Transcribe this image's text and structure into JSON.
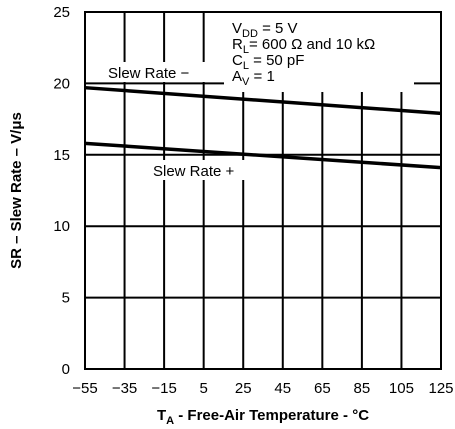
{
  "chart_data": {
    "type": "line",
    "title": "",
    "xlabel": {
      "main": "T",
      "sub": "A",
      "rest": " - Free-Air Temperature - °C"
    },
    "ylabel": "SR – Slew Rate – V/μs",
    "xlim": [
      -55,
      125
    ],
    "ylim": [
      0,
      25
    ],
    "xticks": [
      -55,
      -35,
      -15,
      5,
      25,
      45,
      65,
      85,
      105,
      125
    ],
    "xtick_labels": [
      "−55",
      "−35",
      "−15",
      "5",
      "25",
      "45",
      "65",
      "85",
      "105",
      "125"
    ],
    "yticks": [
      0,
      5,
      10,
      15,
      20,
      25
    ],
    "ytick_labels": [
      "0",
      "5",
      "10",
      "15",
      "20",
      "25"
    ],
    "grid": true,
    "series": [
      {
        "name": "Slew Rate −",
        "x": [
          -55,
          125
        ],
        "values": [
          19.7,
          17.9
        ]
      },
      {
        "name": "Slew Rate +",
        "x": [
          -55,
          125
        ],
        "values": [
          15.8,
          14.1
        ]
      }
    ],
    "conditions": [
      {
        "main": "V",
        "sub": "DD",
        "rest": " = 5 V"
      },
      {
        "main": "R",
        "sub": "L",
        "rest": "= 600 Ω and 10 kΩ"
      },
      {
        "main": "C",
        "sub": "L",
        "rest": " = 50 pF"
      },
      {
        "main": "A",
        "sub": "V",
        "rest": " = 1"
      }
    ]
  }
}
